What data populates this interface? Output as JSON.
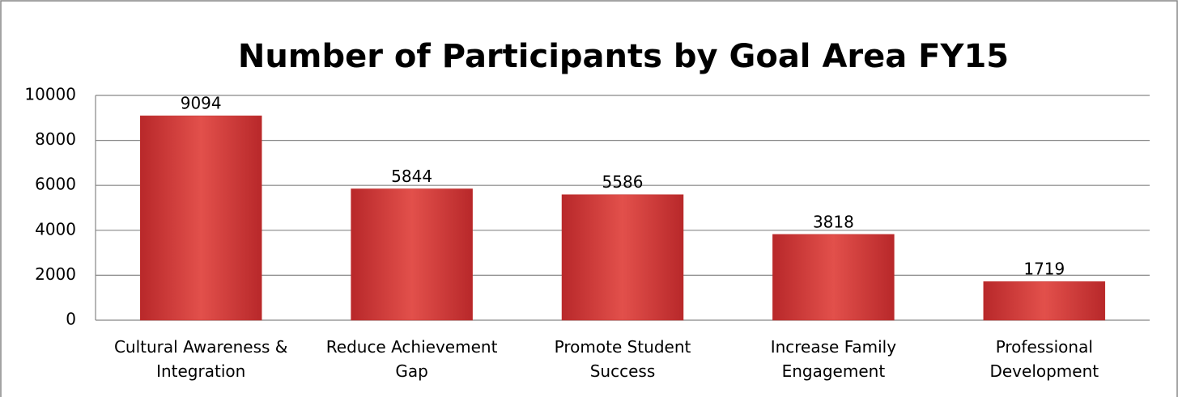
{
  "chart_data": {
    "type": "bar",
    "title": "Number of Participants by Goal Area FY15",
    "categories": [
      "Cultural Awareness & Integration",
      "Reduce Achievement Gap",
      "Promote Student Success",
      "Increase Family Engagement",
      "Professional Development"
    ],
    "values": [
      9094,
      5844,
      5586,
      3818,
      1719
    ],
    "color": "#c0302d",
    "ylim": [
      0,
      10000
    ],
    "yticks": [
      0,
      2000,
      4000,
      6000,
      8000,
      10000
    ],
    "grid": true
  }
}
